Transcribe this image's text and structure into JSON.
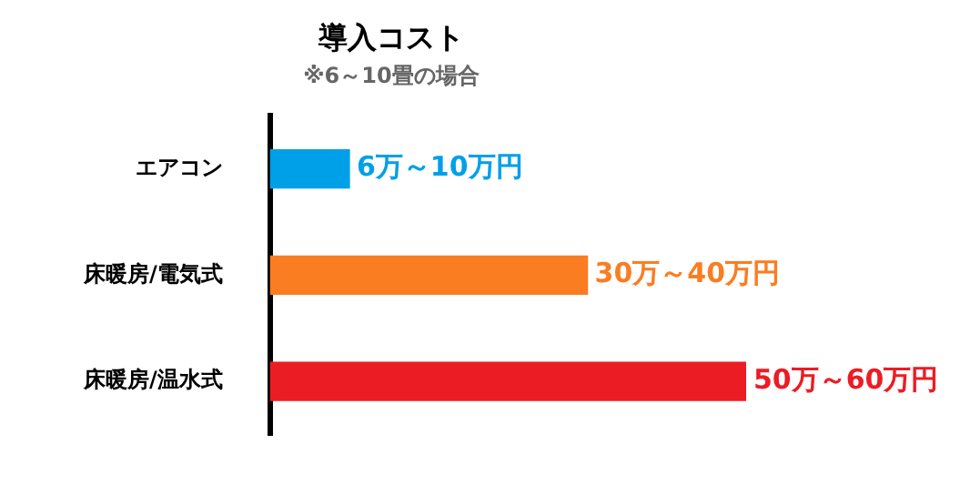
{
  "chart_data": {
    "type": "bar",
    "orientation": "horizontal",
    "title": "導入コスト",
    "subtitle": "※6～10畳の場合",
    "categories": [
      "エアコン",
      "床暖房/電気式",
      "床暖房/温水式"
    ],
    "values": [
      10,
      40,
      60
    ],
    "colors": [
      "#00a0e9",
      "#fa7d22",
      "#ec1c24"
    ],
    "value_labels": [
      "6万～10万円",
      "30万～40万円",
      "50万～60万円"
    ]
  }
}
